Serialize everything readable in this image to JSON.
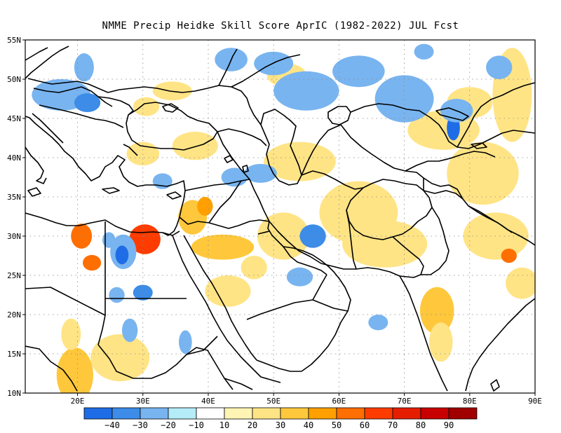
{
  "title": "NMME Precip Heidke Skill Score AprIC (1982-2022) JUL Fcst",
  "map": {
    "lon_range": [
      12,
      90
    ],
    "lat_range": [
      10,
      55
    ],
    "lat_ticks": [
      {
        "value": 55,
        "label": "55N"
      },
      {
        "value": 50,
        "label": "50N"
      },
      {
        "value": 45,
        "label": "45N"
      },
      {
        "value": 40,
        "label": "40N"
      },
      {
        "value": 35,
        "label": "35N"
      },
      {
        "value": 30,
        "label": "30N"
      },
      {
        "value": 25,
        "label": "25N"
      },
      {
        "value": 20,
        "label": "20N"
      },
      {
        "value": 15,
        "label": "15N"
      },
      {
        "value": 10,
        "label": "10N"
      }
    ],
    "lon_ticks": [
      {
        "value": 20,
        "label": "20E"
      },
      {
        "value": 30,
        "label": "30E"
      },
      {
        "value": 40,
        "label": "40E"
      },
      {
        "value": 50,
        "label": "50E"
      },
      {
        "value": 60,
        "label": "60E"
      },
      {
        "value": 70,
        "label": "70E"
      },
      {
        "value": 80,
        "label": "80E"
      },
      {
        "value": 90,
        "label": "90E"
      }
    ],
    "gridlines": "dotted",
    "skill_patches": [
      {
        "lon": 30.5,
        "lat": 29.8,
        "rx": 1.6,
        "ry": 1.4,
        "level": 90
      },
      {
        "lon": 30.3,
        "lat": 29.6,
        "rx": 2.4,
        "ry": 1.9,
        "level": 60
      },
      {
        "lon": 20.6,
        "lat": 30.0,
        "rx": 1.6,
        "ry": 1.6,
        "level": 50
      },
      {
        "lon": 22.2,
        "lat": 26.6,
        "rx": 1.4,
        "ry": 1.0,
        "level": 50
      },
      {
        "lon": 42.2,
        "lat": 28.6,
        "rx": 4.8,
        "ry": 1.6,
        "level": 30
      },
      {
        "lon": 37.6,
        "lat": 32.4,
        "rx": 2.2,
        "ry": 2.2,
        "level": 30
      },
      {
        "lon": 39.5,
        "lat": 33.8,
        "rx": 1.2,
        "ry": 1.2,
        "level": 40
      },
      {
        "lon": 19.6,
        "lat": 12.3,
        "rx": 2.8,
        "ry": 3.5,
        "level": 30
      },
      {
        "lon": 26.5,
        "lat": 14.5,
        "rx": 4.5,
        "ry": 3.0,
        "level": 20
      },
      {
        "lon": 75.0,
        "lat": 20.5,
        "rx": 2.6,
        "ry": 3.0,
        "level": 30
      },
      {
        "lon": 75.6,
        "lat": 16.5,
        "rx": 1.8,
        "ry": 2.5,
        "level": 20
      },
      {
        "lon": 63.0,
        "lat": 33.0,
        "rx": 6.0,
        "ry": 4.0,
        "level": 20
      },
      {
        "lon": 67.0,
        "lat": 29.0,
        "rx": 6.5,
        "ry": 3.0,
        "level": 20
      },
      {
        "lon": 54.0,
        "lat": 39.5,
        "rx": 5.5,
        "ry": 2.5,
        "level": 20
      },
      {
        "lon": 51.5,
        "lat": 30.0,
        "rx": 4.0,
        "ry": 3.0,
        "level": 20
      },
      {
        "lon": 38.0,
        "lat": 41.5,
        "rx": 3.5,
        "ry": 1.8,
        "level": 20
      },
      {
        "lon": 30.0,
        "lat": 40.5,
        "rx": 2.5,
        "ry": 1.5,
        "level": 20
      },
      {
        "lon": 76.0,
        "lat": 43.5,
        "rx": 5.5,
        "ry": 2.5,
        "level": 20
      },
      {
        "lon": 86.5,
        "lat": 48.0,
        "rx": 3.0,
        "ry": 6.0,
        "level": 20
      },
      {
        "lon": 82.0,
        "lat": 38.0,
        "rx": 5.5,
        "ry": 4.0,
        "level": 20
      },
      {
        "lon": 84.0,
        "lat": 30.0,
        "rx": 5.0,
        "ry": 3.0,
        "level": 20
      },
      {
        "lon": 86.0,
        "lat": 27.5,
        "rx": 1.2,
        "ry": 0.9,
        "level": 50
      },
      {
        "lon": 88.0,
        "lat": 24.0,
        "rx": 2.5,
        "ry": 2.0,
        "level": 20
      },
      {
        "lon": 34.5,
        "lat": 48.5,
        "rx": 3.0,
        "ry": 1.2,
        "level": 20
      },
      {
        "lon": 52.0,
        "lat": 50.5,
        "rx": 3.0,
        "ry": 1.5,
        "level": 20
      },
      {
        "lon": 43.0,
        "lat": 23.0,
        "rx": 3.5,
        "ry": 2.0,
        "level": 20
      },
      {
        "lon": 47.0,
        "lat": 26.0,
        "rx": 2.0,
        "ry": 1.5,
        "level": 20
      },
      {
        "lon": 80.0,
        "lat": 47.0,
        "rx": 3.5,
        "ry": 2.0,
        "level": 20
      },
      {
        "lon": 19.0,
        "lat": 17.5,
        "rx": 1.5,
        "ry": 2.0,
        "level": 20
      },
      {
        "lon": 30.5,
        "lat": 46.5,
        "rx": 2.0,
        "ry": 1.2,
        "level": 20
      },
      {
        "lon": 17.5,
        "lat": 48.0,
        "rx": 4.5,
        "ry": 2.0,
        "level": -20
      },
      {
        "lon": 21.5,
        "lat": 47.0,
        "rx": 2.0,
        "ry": 1.2,
        "level": -30
      },
      {
        "lon": 21.0,
        "lat": 51.5,
        "rx": 1.5,
        "ry": 1.8,
        "level": -20
      },
      {
        "lon": 27.0,
        "lat": 28.0,
        "rx": 2.0,
        "ry": 2.2,
        "level": -20
      },
      {
        "lon": 26.8,
        "lat": 27.6,
        "rx": 1.0,
        "ry": 1.2,
        "level": -40
      },
      {
        "lon": 24.8,
        "lat": 29.5,
        "rx": 1.0,
        "ry": 1.0,
        "level": -20
      },
      {
        "lon": 30.0,
        "lat": 22.8,
        "rx": 1.5,
        "ry": 1.0,
        "level": -30
      },
      {
        "lon": 55.0,
        "lat": 48.5,
        "rx": 5.0,
        "ry": 2.5,
        "level": -20
      },
      {
        "lon": 50.0,
        "lat": 52.0,
        "rx": 3.0,
        "ry": 1.5,
        "level": -20
      },
      {
        "lon": 43.5,
        "lat": 52.5,
        "rx": 2.5,
        "ry": 1.5,
        "level": -20
      },
      {
        "lon": 63.0,
        "lat": 51.0,
        "rx": 4.0,
        "ry": 2.0,
        "level": -20
      },
      {
        "lon": 70.0,
        "lat": 47.5,
        "rx": 4.5,
        "ry": 3.0,
        "level": -20
      },
      {
        "lon": 77.5,
        "lat": 43.8,
        "rx": 1.0,
        "ry": 1.6,
        "level": -40
      },
      {
        "lon": 78.0,
        "lat": 46.0,
        "rx": 2.5,
        "ry": 1.5,
        "level": -20
      },
      {
        "lon": 48.0,
        "lat": 38.0,
        "rx": 2.5,
        "ry": 1.2,
        "level": -20
      },
      {
        "lon": 56.0,
        "lat": 30.0,
        "rx": 2.0,
        "ry": 1.5,
        "level": -30
      },
      {
        "lon": 54.0,
        "lat": 24.8,
        "rx": 2.0,
        "ry": 1.2,
        "level": -20
      },
      {
        "lon": 44.0,
        "lat": 37.5,
        "rx": 2.0,
        "ry": 1.2,
        "level": -20
      },
      {
        "lon": 33.0,
        "lat": 37.0,
        "rx": 1.5,
        "ry": 1.0,
        "level": -20
      },
      {
        "lon": 26.0,
        "lat": 22.5,
        "rx": 1.2,
        "ry": 1.0,
        "level": -20
      },
      {
        "lon": 28.0,
        "lat": 18.0,
        "rx": 1.2,
        "ry": 1.5,
        "level": -20
      },
      {
        "lon": 36.5,
        "lat": 16.5,
        "rx": 1.0,
        "ry": 1.5,
        "level": -20
      },
      {
        "lon": 84.5,
        "lat": 51.5,
        "rx": 2.0,
        "ry": 1.5,
        "level": -20
      },
      {
        "lon": 66.0,
        "lat": 19.0,
        "rx": 1.5,
        "ry": 1.0,
        "level": -20
      },
      {
        "lon": 73.0,
        "lat": 53.5,
        "rx": 1.5,
        "ry": 1.0,
        "level": -20
      }
    ]
  },
  "colorbar": {
    "colors": [
      "#1e6de6",
      "#3c8ce8",
      "#78b4f0",
      "#b4ecf8",
      "#ffffff",
      "#fff4b4",
      "#ffe486",
      "#ffc83c",
      "#ffa000",
      "#ff6e00",
      "#ff3c00",
      "#e61e00",
      "#c80000",
      "#a00000"
    ],
    "ticks": [
      {
        "value": -40,
        "label": "−40"
      },
      {
        "value": -30,
        "label": "−30"
      },
      {
        "value": -20,
        "label": "−20"
      },
      {
        "value": -10,
        "label": "−10"
      },
      {
        "value": 10,
        "label": "10"
      },
      {
        "value": 20,
        "label": "20"
      },
      {
        "value": 30,
        "label": "30"
      },
      {
        "value": 40,
        "label": "40"
      },
      {
        "value": 50,
        "label": "50"
      },
      {
        "value": 60,
        "label": "60"
      },
      {
        "value": 70,
        "label": "70"
      },
      {
        "value": 80,
        "label": "80"
      },
      {
        "value": 90,
        "label": "90"
      }
    ]
  }
}
